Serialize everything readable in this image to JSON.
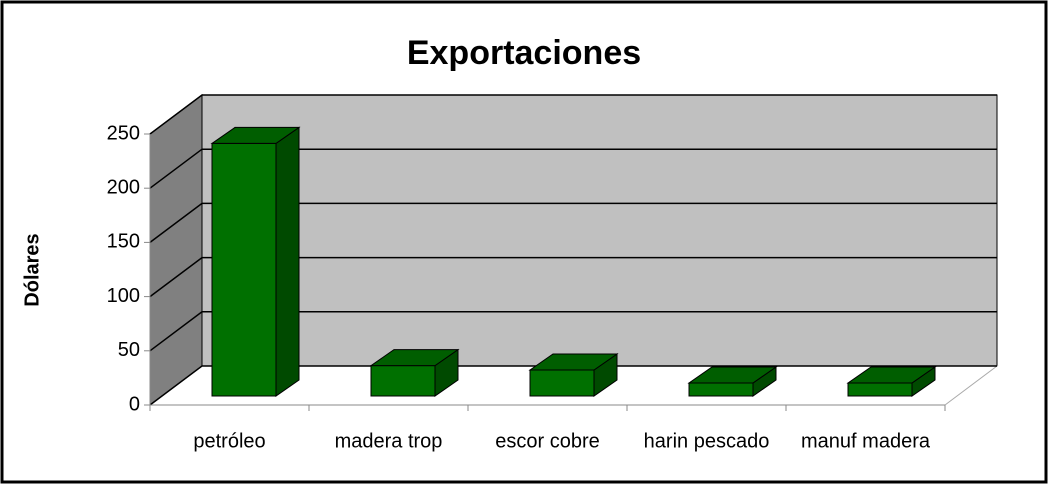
{
  "chart_data": {
    "type": "bar3d",
    "title": "Exportaciones",
    "y_label": "Dólares",
    "categories": [
      "petróleo",
      "madera trop",
      "escor cobre",
      "harin pescado",
      "manuf madera"
    ],
    "values": [
      233,
      28,
      24,
      12,
      12
    ],
    "color": "#007000",
    "ylim": [
      0,
      250
    ],
    "yticks": [
      0,
      50,
      100,
      150,
      200,
      250
    ],
    "grid": true
  }
}
